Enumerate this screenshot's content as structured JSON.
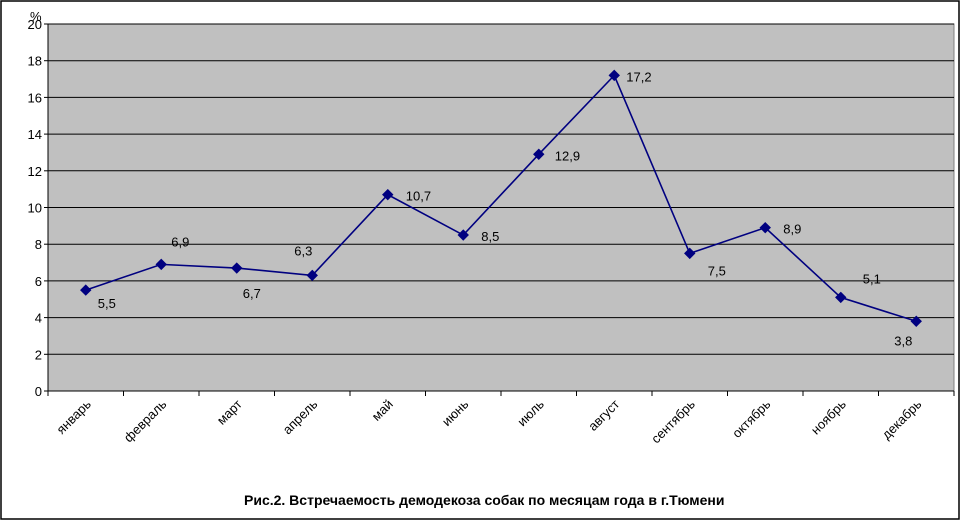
{
  "chart_data": {
    "type": "line",
    "title": "Рис.2. Встречаемость демодекоза собак по месяцам года в г.Тюмени",
    "ylabel": "%",
    "xlabel": "",
    "ylim": [
      0,
      20
    ],
    "yticks": [
      "0",
      "2",
      "4",
      "6",
      "8",
      "10",
      "12",
      "14",
      "16",
      "18",
      "20"
    ],
    "ytick_values": [
      0,
      2,
      4,
      6,
      8,
      10,
      12,
      14,
      16,
      18,
      20
    ],
    "grid": true,
    "legend": "none",
    "categories": [
      "январь",
      "февраль",
      "март",
      "апрель",
      "май",
      "июнь",
      "июль",
      "август",
      "сентябрь",
      "октябрь",
      "ноябрь",
      "декабрь"
    ],
    "series": [
      {
        "values": [
          5.5,
          6.9,
          6.7,
          6.3,
          10.7,
          8.5,
          12.9,
          17.2,
          7.5,
          8.9,
          5.1,
          3.8
        ],
        "labels": [
          "5,5",
          "6,9",
          "6,7",
          "6,3",
          "10,7",
          "8,5",
          "12,9",
          "17,2",
          "7,5",
          "8,9",
          "5,1",
          "3,8"
        ],
        "color": "#000080"
      }
    ],
    "colors": {
      "plot_background": "#c0c0c0",
      "gridlines": "#000000",
      "series": "#000080"
    }
  }
}
